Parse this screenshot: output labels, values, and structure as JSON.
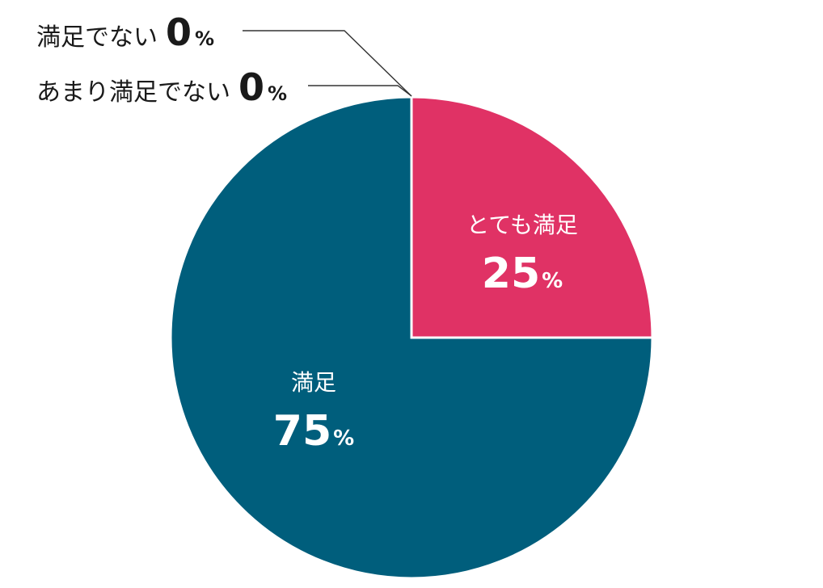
{
  "chart_data": {
    "type": "pie",
    "start": "12 o'clock, clockwise",
    "unit": "%",
    "slices": [
      {
        "label": "とても満足",
        "value": 25,
        "color": "#E03265"
      },
      {
        "label": "満足",
        "value": 75,
        "color": "#005E7C"
      },
      {
        "label": "あまり満足でない",
        "value": 0,
        "color": "#333333"
      },
      {
        "label": "満足でない",
        "value": 0,
        "color": "#333333"
      }
    ]
  }
}
